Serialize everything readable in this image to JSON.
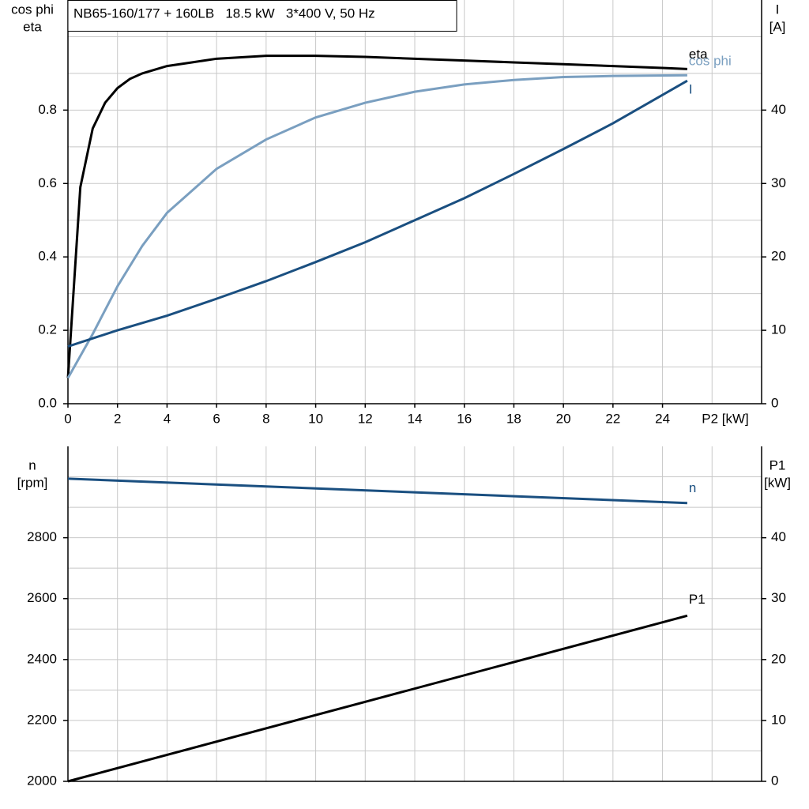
{
  "chart_data": [
    {
      "type": "line",
      "title": "NB65-160/177 + 160LB   18.5 kW   3*400 V, 50 Hz",
      "y_label": [
        "cos phi",
        "eta"
      ],
      "y2_label": [
        "I",
        "[A]"
      ],
      "x_label": "P2 [kW]",
      "xlim": [
        0,
        28
      ],
      "ylim": [
        0,
        1.1
      ],
      "y2lim": [
        0,
        55
      ],
      "xticks": [
        0,
        2,
        4,
        6,
        8,
        10,
        12,
        14,
        16,
        18,
        20,
        22,
        24
      ],
      "yticks": [
        {
          "value": 0,
          "label": "0.0"
        },
        0.2,
        0.4,
        0.6,
        0.8
      ],
      "y2ticks": [
        0,
        10,
        20,
        30,
        40
      ],
      "grid_x": [
        2,
        4,
        6,
        8,
        10,
        12,
        14,
        16,
        18,
        20,
        22,
        24,
        26
      ],
      "grid_y": [
        0.1,
        0.2,
        0.3,
        0.4,
        0.5,
        0.6,
        0.7,
        0.8,
        0.9,
        1.0
      ],
      "series": [
        {
          "name": "eta",
          "color": "#000000",
          "axis": "y",
          "x": [
            0,
            0.5,
            1,
            1.5,
            2,
            2.5,
            3,
            4,
            5,
            6,
            8,
            10,
            12,
            14,
            16,
            18,
            20,
            22,
            24,
            25
          ],
          "values": [
            0.07,
            0.59,
            0.75,
            0.82,
            0.86,
            0.885,
            0.9,
            0.92,
            0.93,
            0.94,
            0.948,
            0.948,
            0.945,
            0.94,
            0.935,
            0.93,
            0.925,
            0.92,
            0.915,
            0.912
          ]
        },
        {
          "name": "cos phi",
          "color": "#7a9fc0",
          "axis": "y",
          "x": [
            0,
            1,
            2,
            3,
            4,
            6,
            8,
            10,
            12,
            14,
            16,
            18,
            20,
            22,
            25
          ],
          "values": [
            0.07,
            0.19,
            0.32,
            0.43,
            0.52,
            0.64,
            0.72,
            0.78,
            0.82,
            0.85,
            0.87,
            0.882,
            0.89,
            0.893,
            0.895
          ]
        },
        {
          "name": "I",
          "color": "#1a4f80",
          "axis": "y2",
          "x": [
            0,
            2,
            4,
            6,
            8,
            10,
            12,
            14,
            16,
            18,
            20,
            22,
            25
          ],
          "values": [
            7.8,
            10,
            12,
            14.3,
            16.7,
            19.3,
            22,
            25,
            28,
            31.3,
            34.7,
            38.2,
            44
          ]
        }
      ]
    },
    {
      "type": "line",
      "y_label": [
        "n",
        "[rpm]"
      ],
      "y2_label": [
        "P1",
        "[kW]"
      ],
      "xlim": [
        0,
        28
      ],
      "ylim": [
        2000,
        3100
      ],
      "y2lim": [
        0,
        55
      ],
      "yticks": [
        2000,
        2200,
        2400,
        2600,
        2800
      ],
      "y2ticks": [
        0,
        10,
        20,
        30,
        40
      ],
      "grid_x": [
        2,
        4,
        6,
        8,
        10,
        12,
        14,
        16,
        18,
        20,
        22,
        24,
        26
      ],
      "grid_y": [
        2100,
        2200,
        2300,
        2400,
        2500,
        2600,
        2700,
        2800,
        2900,
        3000
      ],
      "series": [
        {
          "name": "n",
          "color": "#1a4f80",
          "axis": "y",
          "x": [
            0,
            25
          ],
          "values": [
            2994,
            2914
          ]
        },
        {
          "name": "P1",
          "color": "#000000",
          "axis": "y2",
          "x": [
            0,
            25
          ],
          "values": [
            0,
            27.2
          ]
        }
      ]
    }
  ]
}
